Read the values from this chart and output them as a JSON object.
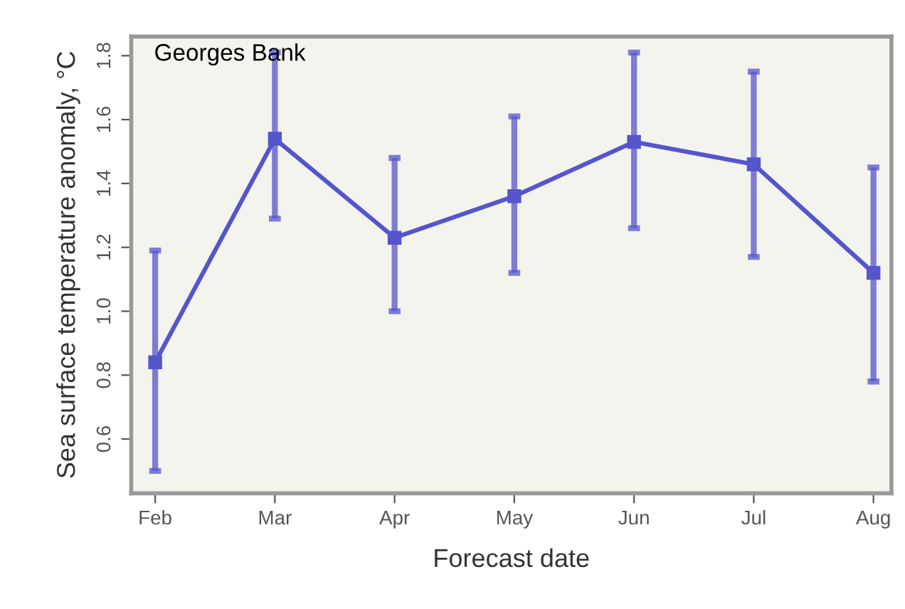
{
  "chart_data": {
    "type": "line",
    "xlabel": "Forecast date",
    "ylabel": "Sea surface temperature anomaly, °C",
    "categories": [
      "Feb",
      "Mar",
      "Apr",
      "May",
      "Jun",
      "Jul",
      "Aug"
    ],
    "series": [
      {
        "color": "#5555cc",
        "values": [
          0.84,
          1.54,
          1.23,
          1.36,
          1.53,
          1.46,
          1.12
        ],
        "errors": [
          [
            0.5,
            1.19
          ],
          [
            1.29,
            1.81
          ],
          [
            1.0,
            1.48
          ],
          [
            1.12,
            1.61
          ],
          [
            1.26,
            1.81
          ],
          [
            1.17,
            1.75
          ],
          [
            0.78,
            1.45
          ]
        ]
      }
    ],
    "ylim": [
      0.43,
      1.86
    ],
    "yticks": [
      0.6,
      0.8,
      {
        "value": 1.0,
        "label": "1.0"
      },
      1.2,
      1.4,
      1.6,
      1.8
    ],
    "marker": "square",
    "grid": false,
    "annotations": [
      "Georges Bank"
    ]
  }
}
